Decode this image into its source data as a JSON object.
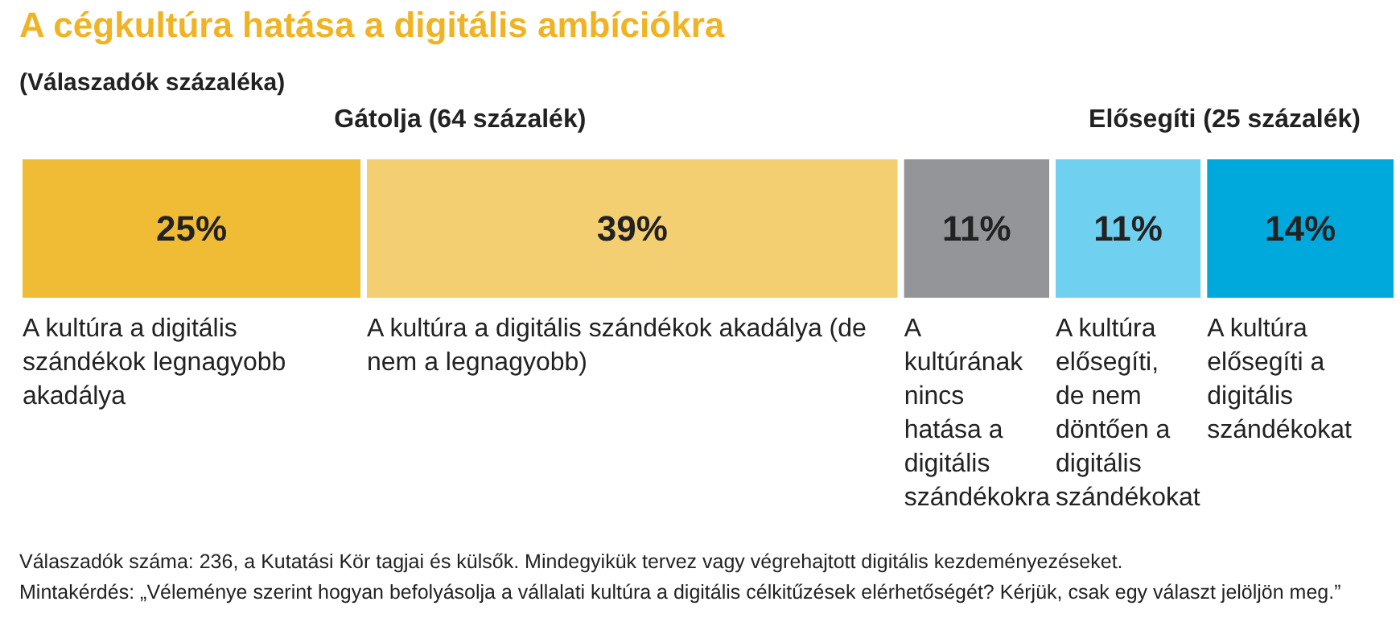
{
  "chart_data": {
    "type": "bar",
    "orientation": "horizontal",
    "stacked": true,
    "title": "A cégkultúra hatása a digitális ambíciókra",
    "subtitle": "(Válaszadók százaléka)",
    "categories": [
      null
    ],
    "series": [
      {
        "name": "A kultúra a digitális szándékok legnagyobb akadálya",
        "color": "#f0bc36",
        "values": [
          25
        ],
        "value_labels": [
          "25%"
        ]
      },
      {
        "name": "A kultúra a digitális szándékok akadálya (de nem a legnagyobb)",
        "color": "#f4cf72",
        "values": [
          39
        ],
        "value_labels": [
          "39%"
        ]
      },
      {
        "name": "A kultúrának nincs hatása a digitális szándékokra",
        "color": "#939598",
        "values": [
          11
        ],
        "value_labels": [
          "11%"
        ]
      },
      {
        "name": "A kultúra elősegíti, de nem döntően a digitális szándékokat",
        "color": "#6fd0ef",
        "values": [
          11
        ],
        "value_labels": [
          "11%"
        ]
      },
      {
        "name": "A kultúra elősegíti a digitális szándékokat",
        "color": "#00a9dc",
        "values": [
          14
        ],
        "value_labels": [
          "14%"
        ]
      }
    ],
    "annotations": [
      "Gátolja (64 százalék)",
      "Elősegíti (25 százalék)",
      "Válaszadók száma: 236, a Kutatási Kör tagjai és külsők. Mindegyikük tervez vagy végrehajtott digitális kezdeményezéseket.",
      "Mintakérdés: „Véleménye szerint hogyan befolyásolja a vállalati kultúra a digitális célkitűzések elérhetőségét? Kérjük, csak egy választ jelöljön meg.”"
    ]
  }
}
